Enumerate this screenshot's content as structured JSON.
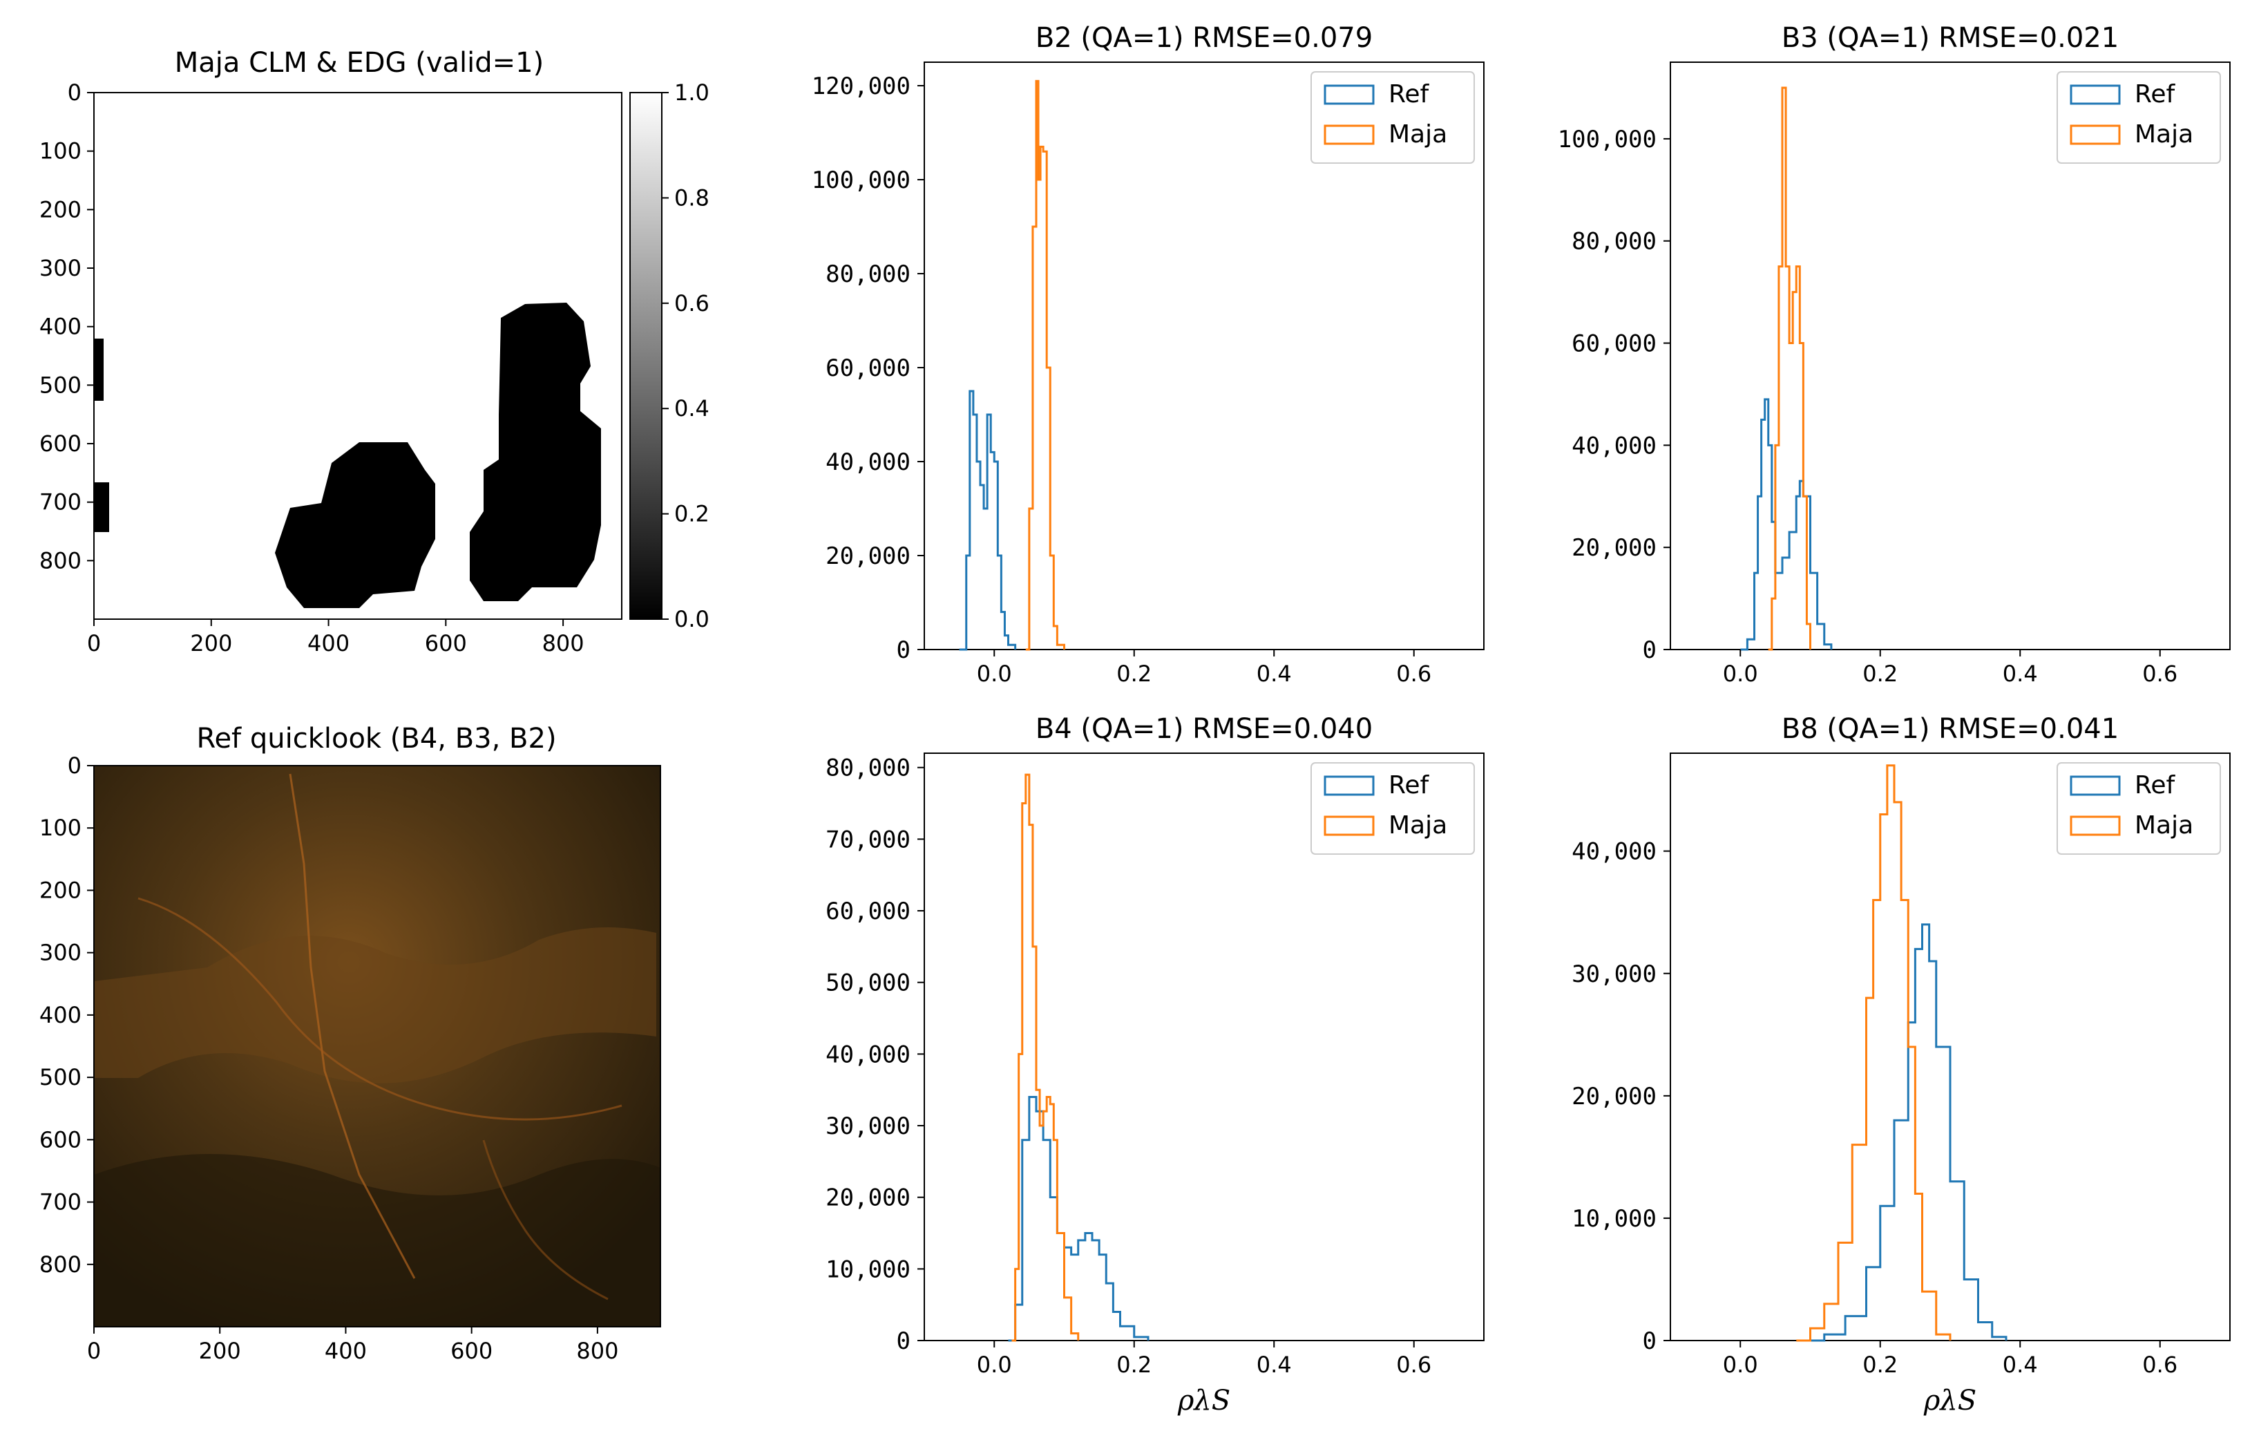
{
  "colors": {
    "ref": "#1f77b4",
    "maja": "#ff7f0e"
  },
  "images": [
    {
      "title": "Maja CLM & EDG (valid=1)",
      "type": "mask",
      "xticks": [
        "0",
        "200",
        "400",
        "600",
        "800"
      ],
      "yticks": [
        "0",
        "100",
        "200",
        "300",
        "400",
        "500",
        "600",
        "700",
        "800"
      ],
      "colorbar": {
        "ticks": [
          "1.0",
          "0.8",
          "0.6",
          "0.4",
          "0.2",
          "0.0"
        ]
      }
    },
    {
      "title": "Ref quicklook (B4, B3, B2)",
      "type": "rgb",
      "xticks": [
        "0",
        "200",
        "400",
        "600",
        "800"
      ],
      "yticks": [
        "0",
        "100",
        "200",
        "300",
        "400",
        "500",
        "600",
        "700",
        "800"
      ]
    }
  ],
  "chart_data": [
    {
      "type": "line",
      "title": "B2 (QA=1) RMSE=0.079",
      "xlabel": "",
      "xlim": [
        -0.1,
        0.7
      ],
      "ylim": [
        0,
        125000
      ],
      "xticks": [
        "0.0",
        "0.2",
        "0.4",
        "0.6"
      ],
      "yticks": [
        "0",
        "20,000",
        "40,000",
        "60,000",
        "80,000",
        "100,000",
        "120,000"
      ],
      "legend": "top-right",
      "series": [
        {
          "name": "Ref",
          "x": [
            -0.05,
            -0.04,
            -0.035,
            -0.03,
            -0.025,
            -0.02,
            -0.015,
            -0.01,
            -0.005,
            0.0,
            0.005,
            0.01,
            0.015,
            0.02,
            0.03
          ],
          "y": [
            0,
            20000,
            55000,
            50000,
            40000,
            35000,
            30000,
            50000,
            42000,
            40000,
            20000,
            8000,
            3000,
            1000,
            0
          ]
        },
        {
          "name": "Maja",
          "x": [
            0.045,
            0.05,
            0.055,
            0.06,
            0.063,
            0.066,
            0.07,
            0.075,
            0.08,
            0.085,
            0.09,
            0.1
          ],
          "y": [
            0,
            30000,
            90000,
            121000,
            100000,
            107000,
            106000,
            60000,
            20000,
            5000,
            1000,
            0
          ]
        }
      ]
    },
    {
      "type": "line",
      "title": "B3 (QA=1) RMSE=0.021",
      "xlabel": "",
      "xlim": [
        -0.1,
        0.7
      ],
      "ylim": [
        0,
        115000
      ],
      "xticks": [
        "0.0",
        "0.2",
        "0.4",
        "0.6"
      ],
      "yticks": [
        "0",
        "20,000",
        "40,000",
        "60,000",
        "80,000",
        "100,000"
      ],
      "legend": "top-right",
      "series": [
        {
          "name": "Ref",
          "x": [
            0.0,
            0.01,
            0.02,
            0.025,
            0.03,
            0.035,
            0.04,
            0.045,
            0.05,
            0.06,
            0.07,
            0.08,
            0.085,
            0.09,
            0.1,
            0.11,
            0.12,
            0.13
          ],
          "y": [
            0,
            2000,
            15000,
            30000,
            45000,
            49000,
            40000,
            25000,
            15000,
            18000,
            23000,
            30000,
            33000,
            30000,
            15000,
            5000,
            1000,
            0
          ]
        },
        {
          "name": "Maja",
          "x": [
            0.04,
            0.045,
            0.05,
            0.055,
            0.06,
            0.065,
            0.07,
            0.075,
            0.08,
            0.085,
            0.09,
            0.095,
            0.1
          ],
          "y": [
            0,
            10000,
            40000,
            75000,
            110000,
            75000,
            60000,
            70000,
            75000,
            60000,
            30000,
            5000,
            0
          ]
        }
      ]
    },
    {
      "type": "line",
      "title": "B4 (QA=1) RMSE=0.040",
      "xlabel": "ρλS",
      "xlim": [
        -0.1,
        0.7
      ],
      "ylim": [
        0,
        82000
      ],
      "xticks": [
        "0.0",
        "0.2",
        "0.4",
        "0.6"
      ],
      "yticks": [
        "0",
        "10,000",
        "20,000",
        "30,000",
        "40,000",
        "50,000",
        "60,000",
        "70,000",
        "80,000"
      ],
      "legend": "top-right",
      "series": [
        {
          "name": "Ref",
          "x": [
            0.02,
            0.03,
            0.04,
            0.05,
            0.06,
            0.07,
            0.08,
            0.09,
            0.1,
            0.11,
            0.12,
            0.13,
            0.14,
            0.15,
            0.16,
            0.17,
            0.18,
            0.2,
            0.22
          ],
          "y": [
            0,
            5000,
            28000,
            34000,
            32000,
            28000,
            20000,
            15000,
            13000,
            12000,
            14000,
            15000,
            14000,
            12000,
            8000,
            4000,
            2000,
            500,
            0
          ]
        },
        {
          "name": "Maja",
          "x": [
            0.025,
            0.03,
            0.035,
            0.04,
            0.045,
            0.05,
            0.055,
            0.06,
            0.065,
            0.07,
            0.075,
            0.08,
            0.085,
            0.09,
            0.1,
            0.11,
            0.12
          ],
          "y": [
            0,
            10000,
            40000,
            75000,
            79000,
            72000,
            55000,
            35000,
            30000,
            32000,
            34000,
            33000,
            28000,
            15000,
            6000,
            1000,
            0
          ]
        }
      ]
    },
    {
      "type": "line",
      "title": "B8 (QA=1) RMSE=0.041",
      "xlabel": "ρλS",
      "xlim": [
        -0.1,
        0.7
      ],
      "ylim": [
        0,
        48000
      ],
      "xticks": [
        "0.0",
        "0.2",
        "0.4",
        "0.6"
      ],
      "yticks": [
        "0",
        "10,000",
        "20,000",
        "30,000",
        "40,000"
      ],
      "legend": "top-right",
      "series": [
        {
          "name": "Ref",
          "x": [
            0.1,
            0.12,
            0.15,
            0.18,
            0.2,
            0.22,
            0.24,
            0.25,
            0.26,
            0.27,
            0.28,
            0.3,
            0.32,
            0.34,
            0.36,
            0.38
          ],
          "y": [
            0,
            500,
            2000,
            6000,
            11000,
            18000,
            26000,
            32000,
            34000,
            31000,
            24000,
            13000,
            5000,
            1500,
            300,
            0
          ]
        },
        {
          "name": "Maja",
          "x": [
            0.08,
            0.1,
            0.12,
            0.14,
            0.16,
            0.18,
            0.19,
            0.2,
            0.21,
            0.22,
            0.23,
            0.24,
            0.25,
            0.26,
            0.28,
            0.3
          ],
          "y": [
            0,
            1000,
            3000,
            8000,
            16000,
            28000,
            36000,
            43000,
            47000,
            44000,
            36000,
            24000,
            12000,
            4000,
            500,
            0
          ]
        }
      ]
    }
  ]
}
